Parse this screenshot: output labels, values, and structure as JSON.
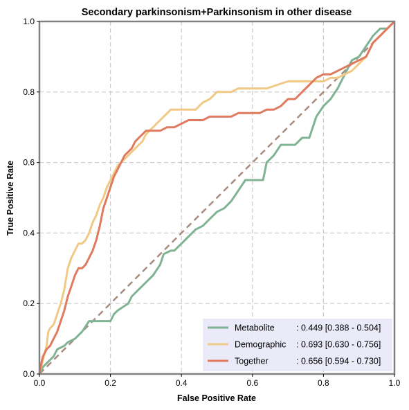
{
  "chart_data": {
    "type": "line",
    "title": "Secondary parkinsonism+Parkinsonism in other disease",
    "xlabel": "False Positive Rate",
    "ylabel": "True Positive Rate",
    "xlim": [
      0,
      1
    ],
    "ylim": [
      0,
      1
    ],
    "xticks": [
      "0.0",
      "0.2",
      "0.4",
      "0.6",
      "0.8",
      "1.0"
    ],
    "yticks": [
      "0.0",
      "0.2",
      "0.4",
      "0.6",
      "0.8",
      "1.0"
    ],
    "grid": true,
    "legend_position": "bottom-right",
    "diagonal": {
      "color": "#a88a7e",
      "style": "dashed"
    },
    "series": [
      {
        "name": "Metabolite",
        "label": ": 0.449 [0.388 - 0.504]",
        "color": "#7fb394",
        "x": [
          0,
          0.01,
          0.02,
          0.04,
          0.05,
          0.07,
          0.08,
          0.1,
          0.12,
          0.14,
          0.16,
          0.2,
          0.21,
          0.22,
          0.25,
          0.26,
          0.28,
          0.3,
          0.32,
          0.34,
          0.35,
          0.37,
          0.38,
          0.4,
          0.42,
          0.44,
          0.46,
          0.48,
          0.5,
          0.52,
          0.54,
          0.56,
          0.58,
          0.6,
          0.63,
          0.64,
          0.66,
          0.68,
          0.7,
          0.72,
          0.74,
          0.76,
          0.78,
          0.8,
          0.82,
          0.84,
          0.86,
          0.88,
          0.9,
          0.92,
          0.94,
          0.96,
          0.98,
          0.99,
          1.0
        ],
        "y": [
          0,
          0.02,
          0.03,
          0.05,
          0.07,
          0.08,
          0.09,
          0.1,
          0.12,
          0.15,
          0.15,
          0.15,
          0.17,
          0.18,
          0.2,
          0.22,
          0.24,
          0.26,
          0.28,
          0.31,
          0.34,
          0.35,
          0.35,
          0.37,
          0.39,
          0.41,
          0.42,
          0.44,
          0.46,
          0.47,
          0.49,
          0.52,
          0.55,
          0.55,
          0.55,
          0.6,
          0.62,
          0.65,
          0.65,
          0.65,
          0.67,
          0.67,
          0.73,
          0.76,
          0.78,
          0.81,
          0.85,
          0.89,
          0.9,
          0.93,
          0.96,
          0.98,
          0.98,
          0.99,
          1.0
        ]
      },
      {
        "name": "Demographic",
        "label": ": 0.693 [0.630 - 0.756]",
        "color": "#f0c987",
        "x": [
          0,
          0.01,
          0.02,
          0.025,
          0.03,
          0.04,
          0.05,
          0.06,
          0.07,
          0.08,
          0.09,
          0.1,
          0.11,
          0.12,
          0.13,
          0.14,
          0.15,
          0.16,
          0.17,
          0.18,
          0.19,
          0.2,
          0.21,
          0.22,
          0.23,
          0.24,
          0.25,
          0.26,
          0.27,
          0.28,
          0.29,
          0.3,
          0.31,
          0.32,
          0.33,
          0.34,
          0.35,
          0.36,
          0.37,
          0.38,
          0.4,
          0.42,
          0.44,
          0.46,
          0.48,
          0.5,
          0.54,
          0.56,
          0.58,
          0.6,
          0.64,
          0.7,
          0.74,
          0.76,
          0.78,
          0.8,
          0.82,
          0.84,
          0.86,
          0.88,
          0.9,
          0.92,
          0.94,
          0.96,
          0.98,
          1.0
        ],
        "y": [
          0,
          0.04,
          0.08,
          0.12,
          0.13,
          0.14,
          0.17,
          0.2,
          0.24,
          0.3,
          0.33,
          0.35,
          0.37,
          0.37,
          0.38,
          0.4,
          0.43,
          0.45,
          0.48,
          0.5,
          0.53,
          0.55,
          0.57,
          0.59,
          0.6,
          0.61,
          0.62,
          0.63,
          0.64,
          0.65,
          0.66,
          0.68,
          0.69,
          0.7,
          0.71,
          0.72,
          0.73,
          0.74,
          0.75,
          0.75,
          0.75,
          0.75,
          0.75,
          0.77,
          0.78,
          0.8,
          0.8,
          0.81,
          0.81,
          0.81,
          0.81,
          0.83,
          0.83,
          0.83,
          0.83,
          0.83,
          0.84,
          0.84,
          0.85,
          0.86,
          0.88,
          0.9,
          0.94,
          0.96,
          0.98,
          1.0
        ]
      },
      {
        "name": "Together",
        "label": ": 0.656 [0.594 - 0.730]",
        "color": "#e07a5f",
        "x": [
          0,
          0.005,
          0.01,
          0.02,
          0.03,
          0.04,
          0.05,
          0.06,
          0.07,
          0.08,
          0.09,
          0.1,
          0.11,
          0.12,
          0.13,
          0.14,
          0.15,
          0.16,
          0.17,
          0.18,
          0.19,
          0.2,
          0.21,
          0.22,
          0.23,
          0.24,
          0.25,
          0.26,
          0.27,
          0.28,
          0.29,
          0.3,
          0.31,
          0.32,
          0.34,
          0.36,
          0.38,
          0.4,
          0.42,
          0.44,
          0.46,
          0.48,
          0.5,
          0.52,
          0.54,
          0.56,
          0.58,
          0.6,
          0.62,
          0.64,
          0.66,
          0.68,
          0.7,
          0.72,
          0.74,
          0.76,
          0.78,
          0.8,
          0.82,
          0.84,
          0.86,
          0.88,
          0.9,
          0.92,
          0.94,
          0.96,
          0.98,
          1.0
        ],
        "y": [
          0,
          0.03,
          0.05,
          0.07,
          0.08,
          0.1,
          0.12,
          0.15,
          0.18,
          0.22,
          0.25,
          0.28,
          0.3,
          0.3,
          0.31,
          0.33,
          0.35,
          0.38,
          0.42,
          0.47,
          0.5,
          0.53,
          0.56,
          0.58,
          0.6,
          0.62,
          0.63,
          0.64,
          0.66,
          0.67,
          0.68,
          0.69,
          0.69,
          0.69,
          0.69,
          0.7,
          0.7,
          0.71,
          0.72,
          0.72,
          0.72,
          0.73,
          0.73,
          0.73,
          0.73,
          0.74,
          0.74,
          0.74,
          0.74,
          0.75,
          0.75,
          0.76,
          0.78,
          0.78,
          0.8,
          0.82,
          0.84,
          0.85,
          0.85,
          0.86,
          0.87,
          0.88,
          0.89,
          0.9,
          0.94,
          0.96,
          0.98,
          1.0
        ]
      }
    ]
  }
}
